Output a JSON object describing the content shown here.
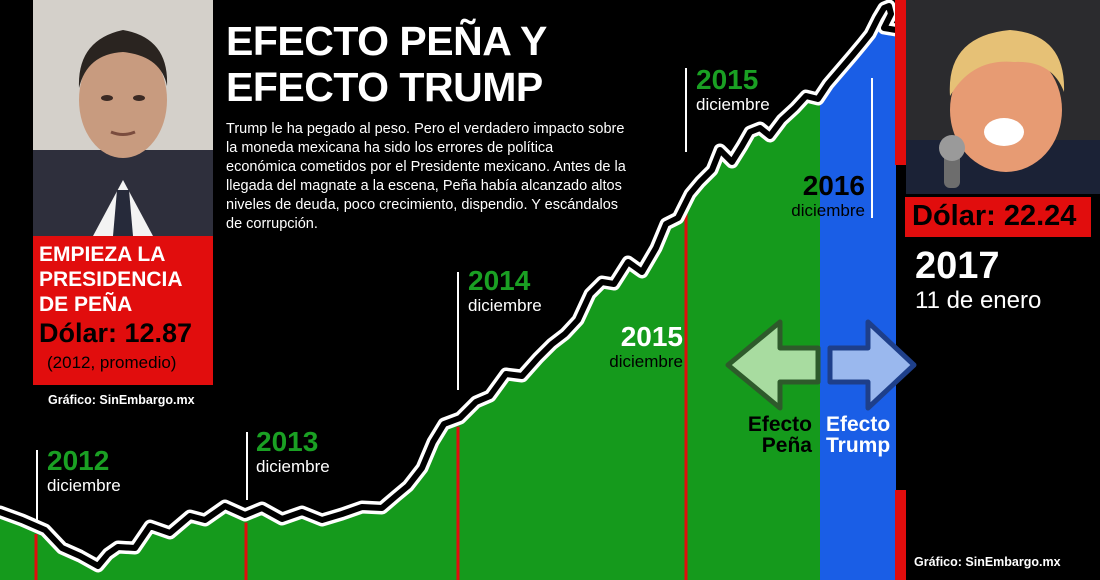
{
  "title": "EFECTO PEÑA Y EFECTO TRUMP",
  "intro": "Trump le ha pegado al peso. Pero el verdadero impacto sobre la moneda mexicana ha sido los errores de política económica cometidos por el Presidente mexicano.  Antes de la llegada del magnate a la escena, Peña había alcanzado altos niveles de deuda, poco crecimiento, dispendio. Y escándalos de corrupción.",
  "left_box": {
    "headline": "EMPIEZA LA PRESIDENCIA DE PEÑA",
    "dollar": "Dólar: 12.87",
    "note": "(2012, promedio)"
  },
  "credit_left": "Gráfico: SinEmbargo.mx",
  "right_box": {
    "dollar": "Dólar: 22.24",
    "date_year": "2017",
    "date_day": "11 de enero"
  },
  "credit_right": "Gráfico: SinEmbargo.mx",
  "annotations": [
    {
      "year": "2012",
      "month": "diciembre",
      "color": "#1aa023"
    },
    {
      "year": "2013",
      "month": "diciembre",
      "color": "#1aa023"
    },
    {
      "year": "2014",
      "month": "diciembre",
      "color": "#1aa023"
    },
    {
      "year": "2015",
      "month": "diciembre",
      "color": "#ffffff"
    },
    {
      "year": "2015",
      "month": "diciembre",
      "color": "#1aa023"
    },
    {
      "year": "2016",
      "month": "diciembre",
      "color": "#000000"
    }
  ],
  "effects": {
    "pena": "Efecto Peña",
    "trump": "Efecto Trump"
  },
  "colors": {
    "background": "#000000",
    "pena_fill": "#159a1c",
    "trump_fill": "#1a5ee6",
    "accent_red": "#e10d0d",
    "arrow_green": "#a8dca0",
    "arrow_blue": "#9ab8ee"
  },
  "icons": [
    "portrait-pena",
    "portrait-trump",
    "arrow-left-icon",
    "arrow-right-icon"
  ],
  "chart_data": {
    "type": "area",
    "series": [
      {
        "name": "Efecto Peña",
        "x": [
          "2012-12",
          "2013-12",
          "2014-12",
          "2015-12",
          "2016-12"
        ],
        "values": [
          12.87,
          13.1,
          14.7,
          17.3,
          20.7
        ]
      },
      {
        "name": "Efecto Trump",
        "x": [
          "2016-12",
          "2017-01-11"
        ],
        "values": [
          20.7,
          22.24
        ]
      }
    ],
    "grid": false
  }
}
